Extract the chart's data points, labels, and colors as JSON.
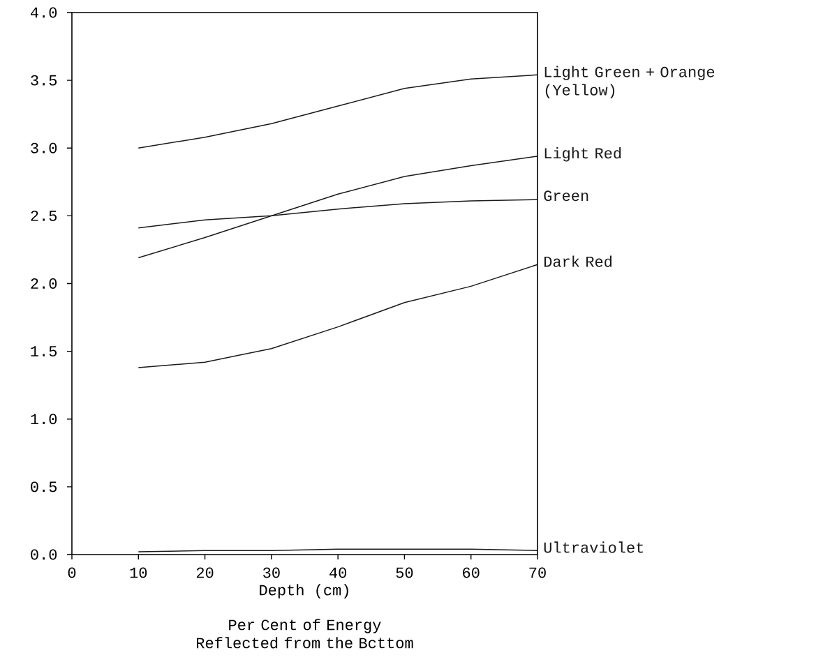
{
  "chart_data": {
    "type": "line",
    "xlabel": "Depth (cm)",
    "annotations": [
      "Per Cent of Energy Reflected from the Bcttom"
    ],
    "x": [
      10,
      20,
      30,
      40,
      50,
      60,
      70
    ],
    "series": [
      {
        "name": "Light Green + Orange (Yellow)",
        "color": "#1a1a1a",
        "values": [
          3.0,
          3.08,
          3.18,
          3.31,
          3.44,
          3.51,
          3.54
        ]
      },
      {
        "name": "Light Red",
        "color": "#1a1a1a",
        "values": [
          2.19,
          2.34,
          2.5,
          2.66,
          2.79,
          2.87,
          2.94
        ]
      },
      {
        "name": "Green",
        "color": "#1a1a1a",
        "values": [
          2.41,
          2.47,
          2.5,
          2.55,
          2.59,
          2.61,
          2.62
        ]
      },
      {
        "name": "Dark Red",
        "color": "#1a1a1a",
        "values": [
          1.38,
          1.42,
          1.52,
          1.68,
          1.86,
          1.98,
          2.14
        ]
      },
      {
        "name": "Ultraviolet",
        "color": "#1a1a1a",
        "values": [
          0.02,
          0.03,
          0.03,
          0.04,
          0.04,
          0.04,
          0.03
        ]
      }
    ],
    "xlim": [
      0,
      70
    ],
    "ylim": [
      0,
      4
    ],
    "xticks": [
      0,
      10,
      20,
      30,
      40,
      50,
      60,
      70
    ],
    "yticks": [
      {
        "value": 0,
        "label": "0.0"
      },
      0.5,
      {
        "value": 1,
        "label": "1.0"
      },
      1.5,
      {
        "value": 2,
        "label": "2.0"
      },
      2.5,
      {
        "value": 3,
        "label": "3.0"
      },
      3.5,
      {
        "value": 4,
        "label": "4.0"
      }
    ],
    "grid": false,
    "legend": false,
    "marker": "none",
    "line_style": "solid"
  }
}
